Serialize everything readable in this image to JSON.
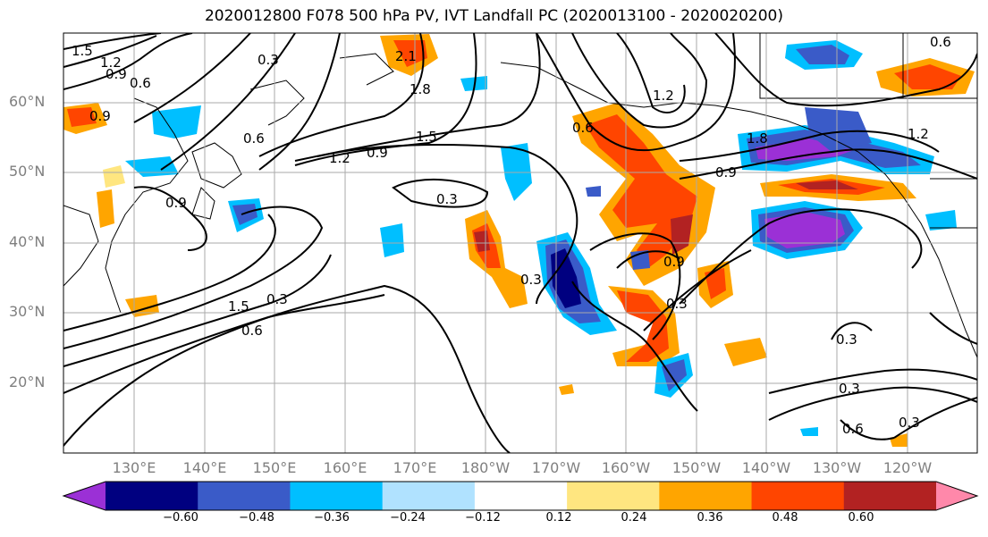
{
  "title": "2020012800 F078 500 hPa PV, IVT Landfall PC (2020013100 - 2020020200)",
  "map": {
    "lat_labels": [
      "60°N",
      "50°N",
      "40°N",
      "30°N",
      "20°N"
    ],
    "lon_labels": [
      "130°E",
      "140°E",
      "150°E",
      "160°E",
      "170°E",
      "180°W",
      "170°W",
      "160°W",
      "150°W",
      "140°W",
      "130°W",
      "120°W"
    ],
    "contour_labels": [
      "1.5",
      "1.2",
      "0.9",
      "0.6",
      "0.3",
      "2.1",
      "1.8",
      "0.6",
      "1.5",
      "1.2",
      "0.9",
      "0.3",
      "0.9",
      "0.3",
      "0.6",
      "1.2",
      "1.5",
      "0.6",
      "0.3",
      "0.9",
      "1.8",
      "0.9",
      "1.2",
      "0.6",
      "0.3",
      "0.3",
      "0.3",
      "0.6",
      "0.3",
      "0.9"
    ]
  },
  "colorbar": {
    "colors": [
      "#9b30d6",
      "#000080",
      "#3a5bc8",
      "#00bfff",
      "#b0e2ff",
      "#ffffff",
      "#ffe680",
      "#ffa500",
      "#ff4500",
      "#b22222",
      "#ff88aa"
    ],
    "tick_labels": [
      "−0.60",
      "−0.48",
      "−0.36",
      "−0.24",
      "−0.12",
      "0.12",
      "0.24",
      "0.36",
      "0.48",
      "0.60"
    ]
  }
}
